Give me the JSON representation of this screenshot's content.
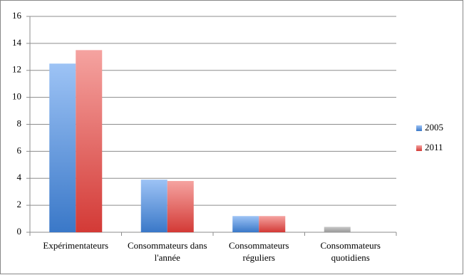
{
  "chart_data": {
    "type": "bar",
    "categories": [
      "Expérimentateurs",
      "Consommateurs dans l'année",
      "Consommateurs réguliers",
      "Consommateurs quotidiens"
    ],
    "series": [
      {
        "name": "2005",
        "color": "#4f81bd",
        "colors": [
          "#4f81bd",
          "#4f81bd",
          "#4f81bd",
          "#a6a6a6"
        ],
        "values": [
          12.5,
          3.9,
          1.2,
          0.4
        ]
      },
      {
        "name": "2011",
        "color": "#d9534f",
        "values": [
          13.5,
          3.8,
          1.2,
          null
        ]
      }
    ],
    "ylim": [
      0,
      16
    ],
    "yticks": [
      0,
      2,
      4,
      6,
      8,
      10,
      12,
      14,
      16
    ],
    "grid": true,
    "legend": "right"
  }
}
